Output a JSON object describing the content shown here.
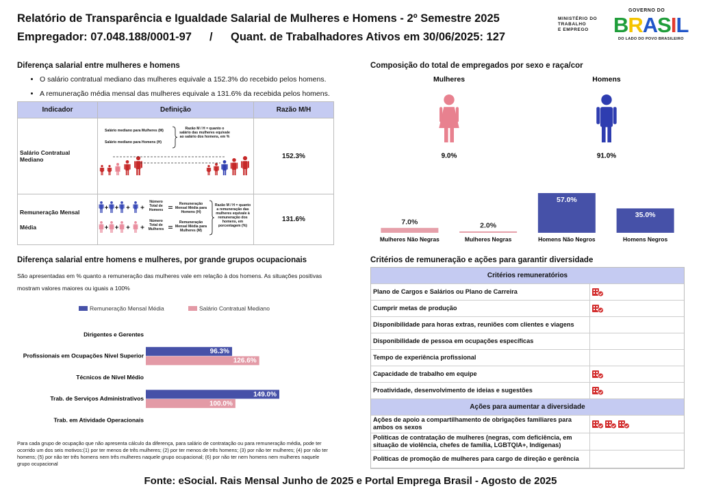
{
  "header": {
    "title": "Relatório de Transparência e Igualdade Salarial de Mulheres e Homens - 2º Semestre 2025",
    "employer": "Empregador: 07.048.188/0001-97",
    "separator": "/",
    "workers": "Quant. de Trabalhadores Ativos em 30/06/2025: 127"
  },
  "logos": {
    "ministry": [
      "MINISTÉRIO DO",
      "TRABALHO",
      "E EMPREGO"
    ],
    "government": "GOVERNO DO",
    "brasil": "BRASIL",
    "slogan": "DO LADO DO POVO BRASILEIRO"
  },
  "salary_gap": {
    "title": "Diferença salarial entre mulheres e homens",
    "bullets": [
      "O salário contratual mediano das mulheres equivale a 152.3% do recebido pelos homens.",
      "A remuneração média mensal das mulheres equivale a 131.6% da recebida pelos homens."
    ],
    "table": {
      "headers": [
        "Indicador",
        "Definição",
        "Razão M/H"
      ],
      "rows": [
        {
          "indicator": "Salário Contratual Mediano",
          "ratio": "152.3%",
          "definition": {
            "women": "Salário mediano para Mulheres (M)",
            "men": "Salário mediano para Homens (H)",
            "ratio": "Razão M / H = quanto o salário das mulheres equivale ao salário dos homens, em %"
          }
        },
        {
          "indicator": "Remuneração Mensal Média",
          "ratio": "131.6%",
          "definition": {
            "men_count": "Número Total de Homens",
            "men_value": "Remuneração Mensal Média para Homens (H)",
            "women_count": "Número Total de Mulheres",
            "women_value": "Remuneração Mensal Média para Mulheres (M)",
            "ratio": "Razão M / H = quanto a remuneração das mulheres equivale à remuneração dos homens, em porcentagem (%)"
          }
        }
      ]
    }
  },
  "composition": {
    "title": "Composição do total de empregados por sexo e raça/cor",
    "groups": [
      {
        "label": "Mulheres",
        "share": "9.0%",
        "color": "#e8818f"
      },
      {
        "label": "Homens",
        "share": "91.0%",
        "color": "#2e3db0"
      }
    ]
  },
  "chart_data": [
    {
      "type": "bar",
      "categories": [
        "Mulheres Não Negras",
        "Mulheres Negras",
        "Homens Não Negros",
        "Homens Negros"
      ],
      "values": [
        7,
        2,
        57,
        35
      ],
      "value_labels": [
        "7.0%",
        "2.0%",
        "57.0%",
        "35.0%"
      ],
      "colors": [
        "#e6a0aa",
        "#e6a0aa",
        "#4651a8",
        "#4651a8"
      ]
    },
    {
      "type": "hbar",
      "title": "Diferença salarial entre homens e mulheres, por grande grupos ocupacionais",
      "subtitle": "São apresentadas em % quanto a remuneração das mulheres vale em relação à dos homens. As situações positivas mostram valores maiores ou iguais a 100%",
      "categories": [
        "Dirigentes e Gerentes",
        "Profissionais em Ocupações Nível Superior",
        "Técnicos de Nível Médio",
        "Trab. de Serviços Administrativos",
        "Trab. em Atividade Operacionais"
      ],
      "series": [
        {
          "name": "Remuneração Mensal Média",
          "color": "#4651a8",
          "values": [
            null,
            96.3,
            null,
            149.0,
            null
          ],
          "value_labels": [
            null,
            "96.3%",
            null,
            "149.0%",
            null
          ]
        },
        {
          "name": "Salário Contratual Mediano",
          "color": "#e39aa6",
          "values": [
            null,
            126.6,
            null,
            100.0,
            null
          ],
          "value_labels": [
            null,
            "126.6%",
            null,
            "100.0%",
            null
          ]
        }
      ],
      "note": "Para cada grupo de ocupação que não apresenta cálculo da diferença, para salário de contratação ou para remuneração média, pode ter ocorrido um dos seis motivos:(1) por ter menos de três mulheres; (2) por ter menos de três homens; (3) por não ter mulheres; (4) por não ter homens; (5) por não ter três homens nem três mulheres naquele grupo ocupacional; (6) por não ter nem homens nem mulheres naquele grupo ocupacional"
    }
  ],
  "diversity": {
    "title": "Critérios de remuneração e ações para garantir diversidade",
    "sections": [
      {
        "title": "Critérios remuneratórios",
        "rows": [
          {
            "text": "Plano de Cargos e Salários ou Plano de Carreira",
            "icons": 1
          },
          {
            "text": "Cumprir metas de produção",
            "icons": 1
          },
          {
            "text": "Disponibilidade para horas extras, reuniões com clientes e viagens",
            "icons": 0
          },
          {
            "text": "Disponibilidade de pessoa em ocupações específicas",
            "icons": 0
          },
          {
            "text": "Tempo de experiência profissional",
            "icons": 0
          },
          {
            "text": "Capacidade de trabalho em equipe",
            "icons": 1
          },
          {
            "text": "Proatividade, desenvolvimento de ideias e sugestões",
            "icons": 1
          }
        ]
      },
      {
        "title": "Ações para aumentar a diversidade",
        "rows": [
          {
            "text": "Ações de apoio a compartilhamento de obrigações familiares para ambos os sexos",
            "icons": 3
          },
          {
            "text": "Políticas de contratação de mulheres (negras, com deficiência, em situação de violência, chefes de família, LGBTQIA+, Indígenas)",
            "icons": 0
          },
          {
            "text": "Políticas de promoção de mulheres para cargo de direção e gerência",
            "icons": 0
          }
        ]
      }
    ]
  },
  "footer": "Fonte: eSocial. Rais Mensal Junho de 2025 e Portal Emprega Brasil - Agosto de 2025"
}
